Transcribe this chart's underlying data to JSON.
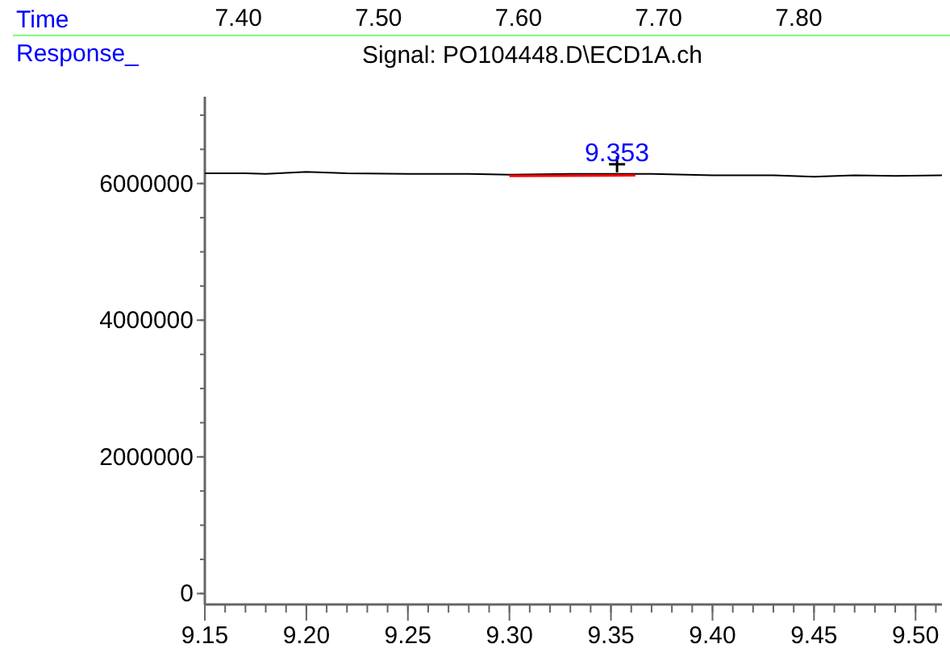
{
  "chart_data": {
    "type": "line",
    "title": "Signal: PO104448.D\\ECD1A.ch",
    "ylabel": "Response_",
    "x2label": "Time",
    "x2lim": [
      7.239,
      7.908
    ],
    "x2ticks": [
      {
        "value": 7.4,
        "label": "7.40"
      },
      {
        "value": 7.5,
        "label": "7.50"
      },
      {
        "value": 7.6,
        "label": "7.60"
      },
      {
        "value": 7.7,
        "label": "7.70"
      },
      {
        "value": 7.8,
        "label": "7.80"
      }
    ],
    "xlim": [
      9.15,
      9.513
    ],
    "xticks": [
      9.15,
      {
        "value": 9.2,
        "label": "9.20"
      },
      9.25,
      {
        "value": 9.3,
        "label": "9.30"
      },
      9.35,
      {
        "value": 9.4,
        "label": "9.40"
      },
      9.45,
      {
        "value": 9.5,
        "label": "9.50"
      }
    ],
    "ylim": [
      -160000,
      7270000
    ],
    "yticks": [
      0,
      2000000,
      4000000,
      6000000
    ],
    "series": [
      {
        "color": "#000000",
        "x": [
          9.15,
          9.17,
          9.18,
          9.2,
          9.22,
          9.25,
          9.28,
          9.3,
          9.33,
          9.35,
          9.37,
          9.4,
          9.43,
          9.45,
          9.47,
          9.49,
          9.513
        ],
        "values": [
          6150000,
          6150000,
          6140000,
          6170000,
          6150000,
          6140000,
          6140000,
          6130000,
          6140000,
          6140000,
          6140000,
          6120000,
          6120000,
          6100000,
          6120000,
          6110000,
          6120000
        ]
      },
      {
        "color": "#ff0000",
        "x": [
          9.3,
          9.362
        ],
        "values": [
          6110000,
          6120000
        ]
      }
    ],
    "annotations": [
      {
        "text": "9.353",
        "x": 9.353,
        "y": 6140000
      }
    ]
  }
}
